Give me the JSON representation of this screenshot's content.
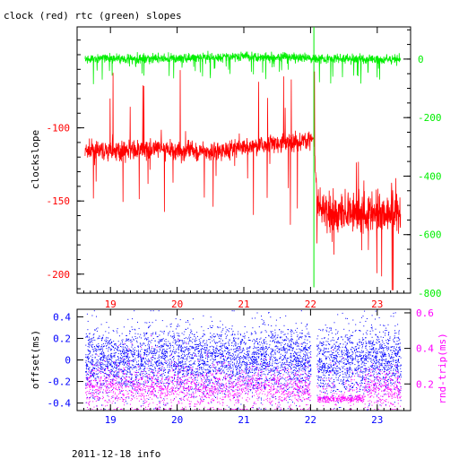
{
  "title": "clock (red) rtc (green) slopes",
  "footer": "2011-12-18 info",
  "colors": {
    "clock": "#ff0000",
    "rtc": "#00ee00",
    "offset": "#0000ff",
    "rndtrip": "#ff00ff",
    "axis": "#000000"
  },
  "chart_data": [
    {
      "type": "line",
      "title": "clock (red) rtc (green) slopes",
      "xlabel": "",
      "ylabel": "clockslope",
      "xlim": [
        18.5,
        23.5
      ],
      "ylim": [
        -213,
        -31
      ],
      "y2lim": [
        -800,
        110
      ],
      "x_ticks": [
        19,
        20,
        21,
        22,
        23
      ],
      "y_ticks": [
        -100,
        -150,
        -200
      ],
      "y2_ticks": [
        0,
        -200,
        -400,
        -600,
        -800
      ],
      "series": [
        {
          "name": "clock",
          "color": "#ff0000",
          "axis": "left",
          "x": [
            18.62,
            19.0,
            19.5,
            19.8,
            20.0,
            20.5,
            21.0,
            21.5,
            21.9,
            22.05,
            22.1,
            22.5,
            23.0,
            23.35
          ],
          "y": [
            -116,
            -116,
            -115,
            -115,
            -116,
            -116,
            -113,
            -111,
            -109,
            -107,
            -157,
            -158,
            -158,
            -158
          ]
        },
        {
          "name": "rtc",
          "color": "#00ee00",
          "axis": "right",
          "x": [
            18.62,
            19.0,
            20.0,
            21.0,
            22.0,
            23.0,
            23.35
          ],
          "y": [
            0,
            2,
            2,
            10,
            3,
            0,
            0
          ]
        }
      ]
    },
    {
      "type": "scatter",
      "xlabel": "",
      "ylabel": "offset(ms)",
      "y2label": "rnd-trip(ms)",
      "xlim": [
        18.5,
        23.5
      ],
      "ylim": [
        -0.47,
        0.47
      ],
      "y2lim": [
        0.05,
        0.62
      ],
      "x_ticks": [
        19,
        20,
        21,
        22,
        23
      ],
      "y_ticks": [
        0.4,
        0.2,
        0,
        -0.2,
        -0.4
      ],
      "y2_ticks": [
        0.6,
        0.4,
        0.2
      ],
      "series": [
        {
          "name": "offset",
          "color": "#0000ff",
          "axis": "left",
          "x_range": [
            18.62,
            23.35
          ],
          "y_center": 0.0,
          "y_spread": 0.15
        },
        {
          "name": "rnd-trip",
          "color": "#ff00ff",
          "axis": "right",
          "x_range": [
            18.62,
            23.35
          ],
          "y_center": 0.18,
          "y_spread": 0.05
        }
      ]
    }
  ]
}
